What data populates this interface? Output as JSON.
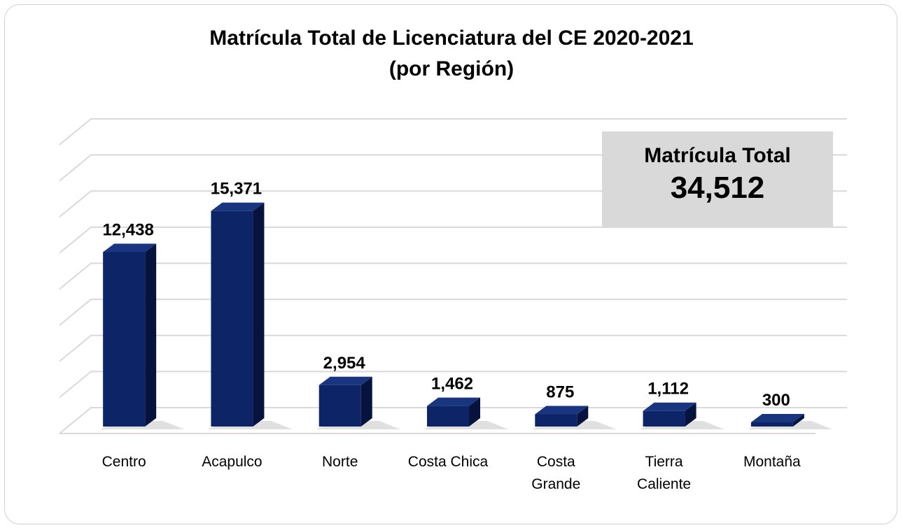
{
  "chart_data": {
    "type": "bar3d",
    "title": "Matrícula Total de Licenciatura del CE 2020-2021",
    "subtitle": "(por Región)",
    "categories": [
      "Centro",
      "Acapulco",
      "Norte",
      "Costa Chica",
      "Costa Grande",
      "Tierra Caliente",
      "Montaña"
    ],
    "values": [
      12438,
      15371,
      2954,
      1462,
      875,
      1112,
      300
    ],
    "value_labels": [
      "12,438",
      "15,371",
      "2,954",
      "1,462",
      "875",
      "1,112",
      "300"
    ],
    "color": "#0d2466",
    "ylim": [
      0,
      16000
    ],
    "yticks": [
      0,
      2000,
      4000,
      6000,
      8000,
      10000,
      12000,
      14000,
      16000
    ],
    "grid": true,
    "annotations": [
      "Matrícula Total",
      "34,512"
    ]
  }
}
